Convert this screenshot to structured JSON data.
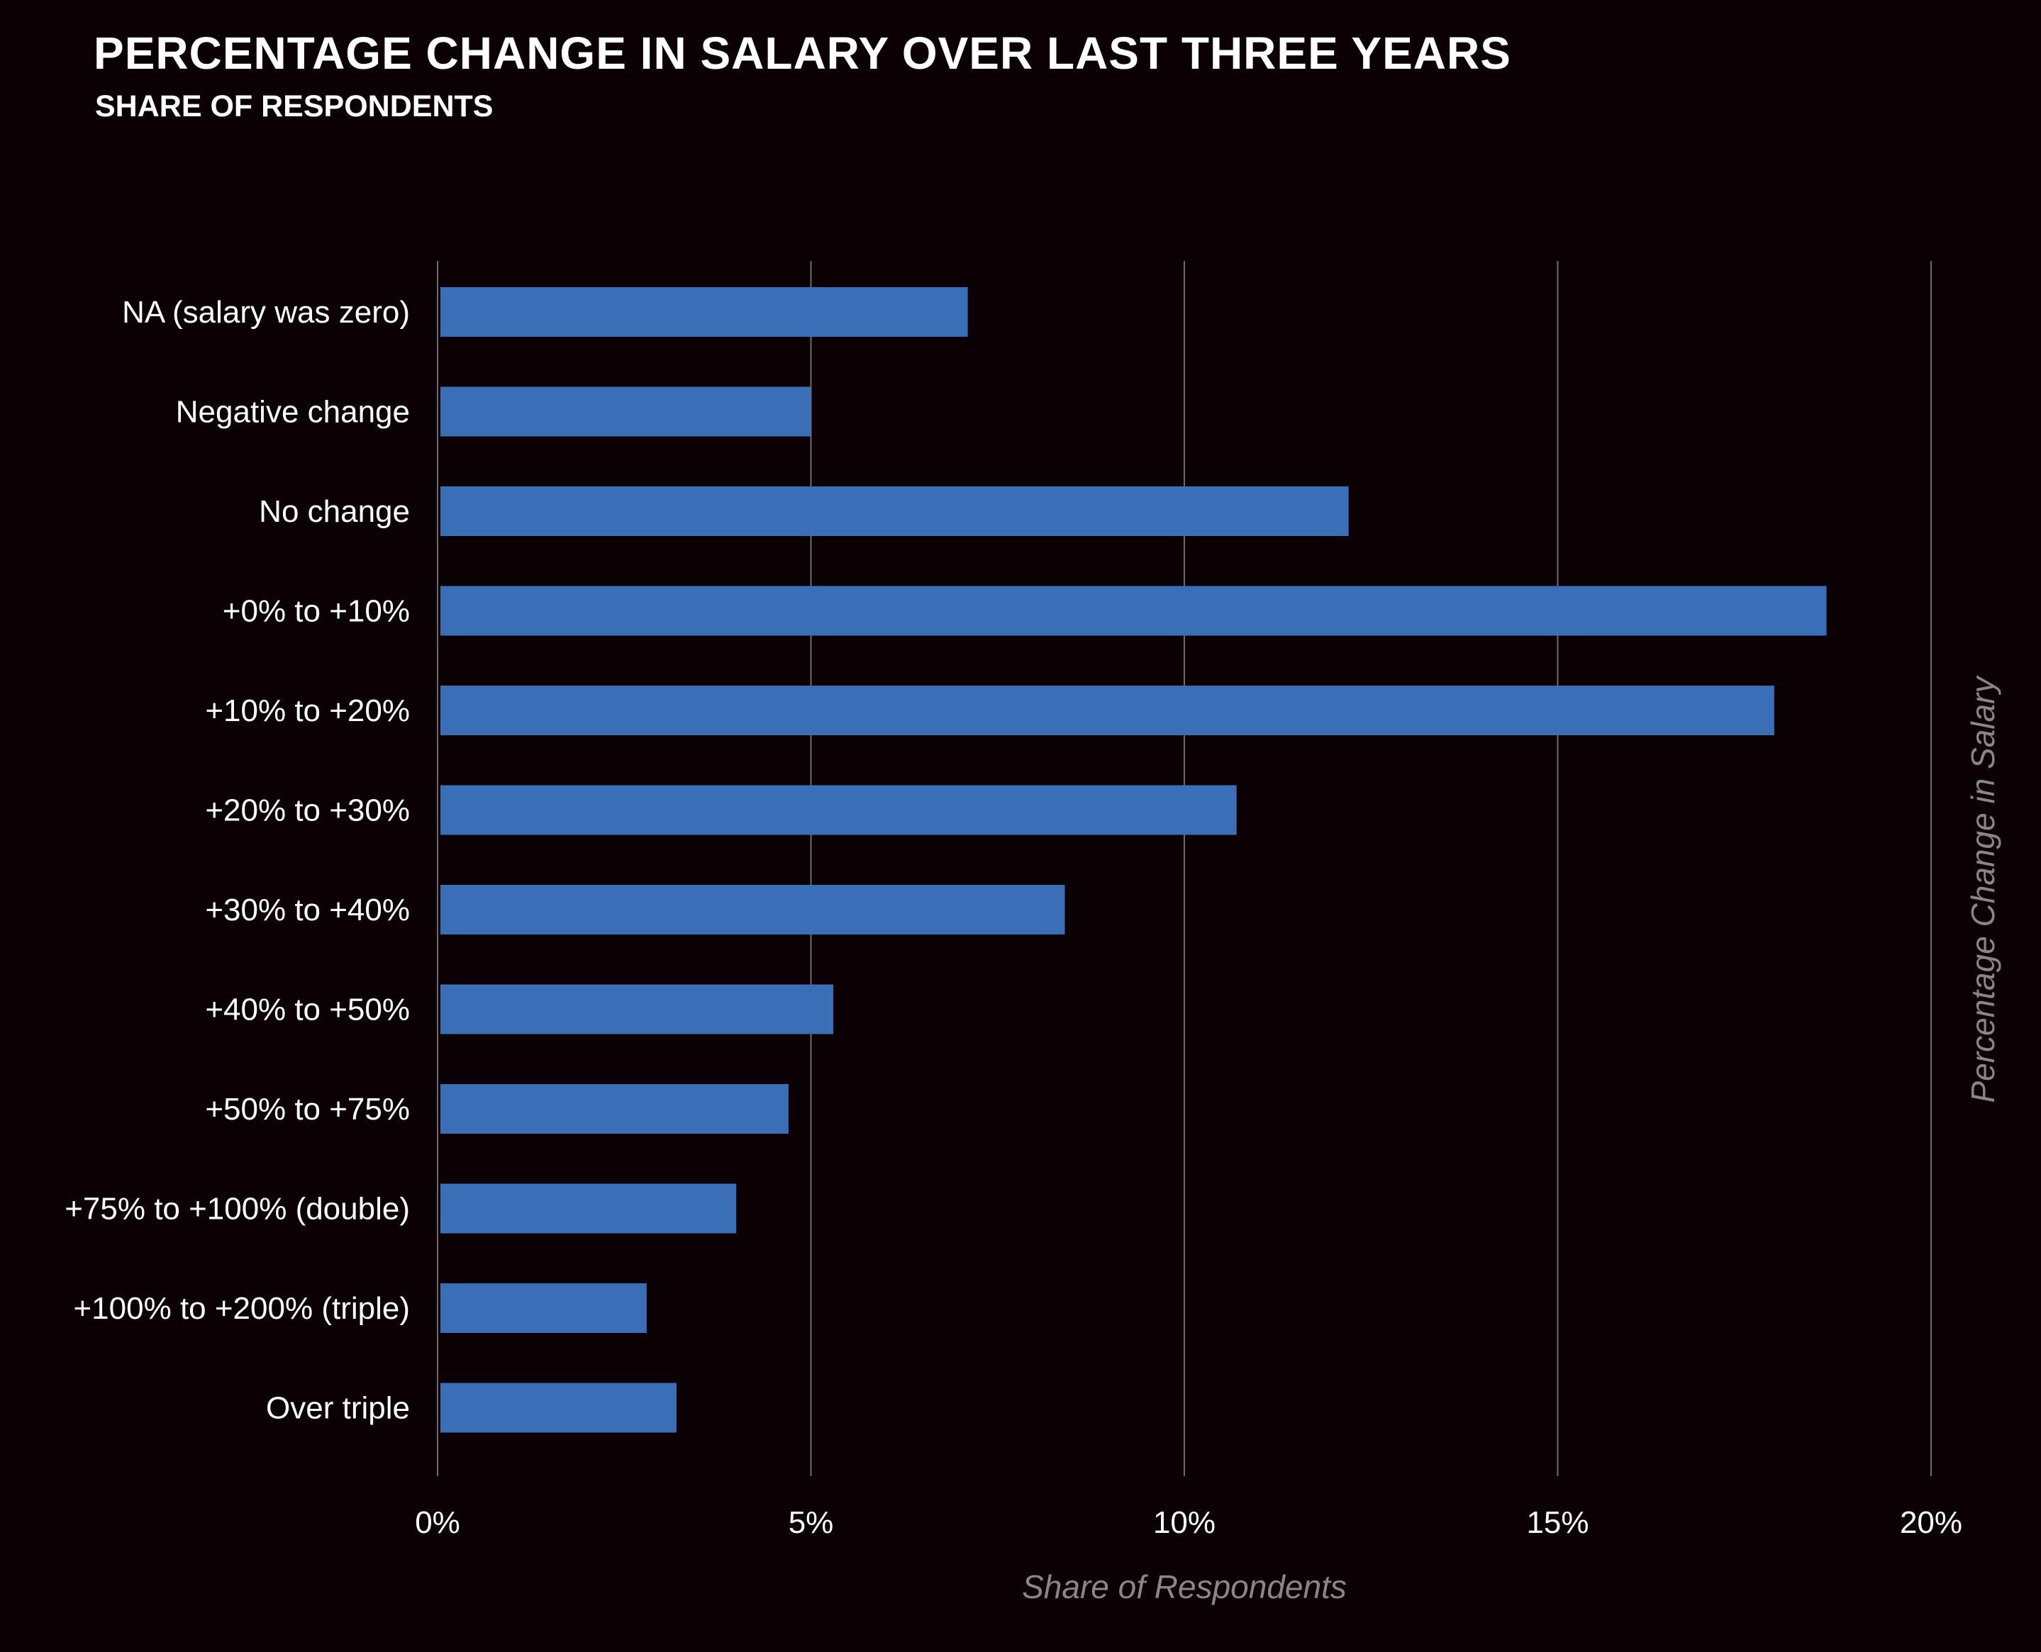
{
  "chart_data": {
    "type": "bar",
    "orientation": "horizontal",
    "title": "PERCENTAGE CHANGE IN SALARY OVER LAST THREE YEARS",
    "subtitle": "SHARE OF RESPONDENTS",
    "xlabel": "Share of Respondents",
    "ylabel": "Percentage Change in Salary",
    "xlim": [
      0,
      20
    ],
    "x_ticks": [
      0,
      5,
      10,
      15,
      20
    ],
    "x_tick_labels": [
      "0%",
      "5%",
      "10%",
      "15%",
      "20%"
    ],
    "grid": "vertical",
    "categories": [
      "NA (salary was zero)",
      "Negative change",
      "No change",
      "+0% to +10%",
      "+10% to +20%",
      "+20% to +30%",
      "+30% to +40%",
      "+40% to +50%",
      "+50% to +75%",
      "+75% to +100% (double)",
      "+100% to +200% (triple)",
      "Over triple"
    ],
    "values": [
      7.1,
      5.0,
      12.2,
      18.6,
      17.9,
      10.7,
      8.4,
      5.3,
      4.7,
      4.0,
      2.8,
      3.2
    ],
    "colors": {
      "background": "#0b0104",
      "bar": "#3a6fb7",
      "grid": "#6e6a6b",
      "axis_title": "#8a8586",
      "text": "#ffffff"
    }
  }
}
